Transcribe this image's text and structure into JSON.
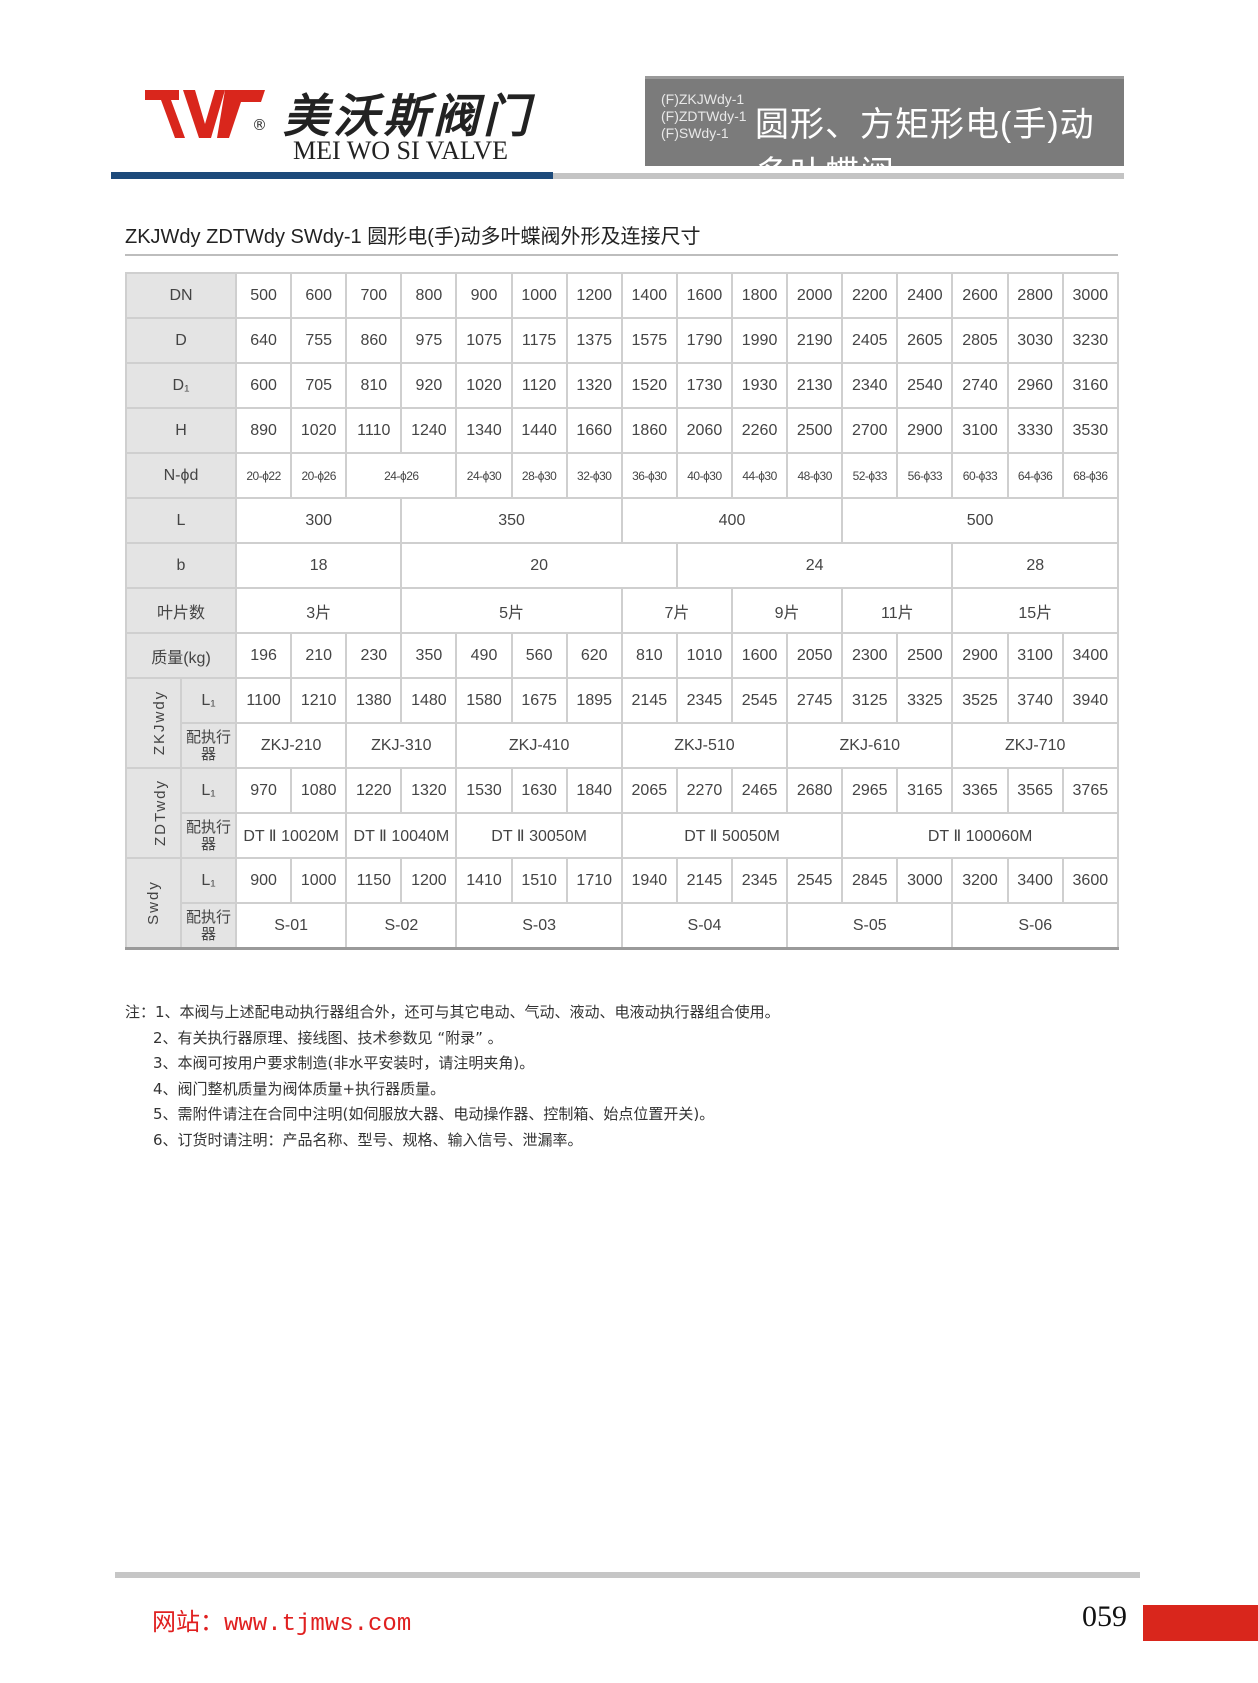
{
  "header": {
    "brand_cn": "美沃斯阀门",
    "brand_en": "MEI WO SI VALVE",
    "registered": "®",
    "logo_text": "TWF",
    "models": [
      "(F)ZKJWdy-1",
      "(F)ZDTWdy-1",
      "(F)SWdy-1"
    ],
    "title": "圆形、方矩形电(手)动多叶蝶阀"
  },
  "colors": {
    "brand_red": "#d9261c",
    "blue_bar": "#1d4a7a",
    "title_box": "#7b7b7b"
  },
  "section_title": "ZKJWdy ZDTWdy SWdy-1 圆形电(手)动多叶蝶阀外形及连接尺寸",
  "table": {
    "rows": [
      {
        "label": "DN",
        "cells": [
          [
            "500",
            1
          ],
          [
            "600",
            1
          ],
          [
            "700",
            1
          ],
          [
            "800",
            1
          ],
          [
            "900",
            1
          ],
          [
            "1000",
            1
          ],
          [
            "1200",
            1
          ],
          [
            "1400",
            1
          ],
          [
            "1600",
            1
          ],
          [
            "1800",
            1
          ],
          [
            "2000",
            1
          ],
          [
            "2200",
            1
          ],
          [
            "2400",
            1
          ],
          [
            "2600",
            1
          ],
          [
            "2800",
            1
          ],
          [
            "3000",
            1
          ]
        ]
      },
      {
        "label": "D",
        "cells": [
          [
            "640",
            1
          ],
          [
            "755",
            1
          ],
          [
            "860",
            1
          ],
          [
            "975",
            1
          ],
          [
            "1075",
            1
          ],
          [
            "1175",
            1
          ],
          [
            "1375",
            1
          ],
          [
            "1575",
            1
          ],
          [
            "1790",
            1
          ],
          [
            "1990",
            1
          ],
          [
            "2190",
            1
          ],
          [
            "2405",
            1
          ],
          [
            "2605",
            1
          ],
          [
            "2805",
            1
          ],
          [
            "3030",
            1
          ],
          [
            "3230",
            1
          ]
        ]
      },
      {
        "label": "D₁",
        "cells": [
          [
            "600",
            1
          ],
          [
            "705",
            1
          ],
          [
            "810",
            1
          ],
          [
            "920",
            1
          ],
          [
            "1020",
            1
          ],
          [
            "1120",
            1
          ],
          [
            "1320",
            1
          ],
          [
            "1520",
            1
          ],
          [
            "1730",
            1
          ],
          [
            "1930",
            1
          ],
          [
            "2130",
            1
          ],
          [
            "2340",
            1
          ],
          [
            "2540",
            1
          ],
          [
            "2740",
            1
          ],
          [
            "2960",
            1
          ],
          [
            "3160",
            1
          ]
        ]
      },
      {
        "label": "H",
        "cells": [
          [
            "890",
            1
          ],
          [
            "1020",
            1
          ],
          [
            "1110",
            1
          ],
          [
            "1240",
            1
          ],
          [
            "1340",
            1
          ],
          [
            "1440",
            1
          ],
          [
            "1660",
            1
          ],
          [
            "1860",
            1
          ],
          [
            "2060",
            1
          ],
          [
            "2260",
            1
          ],
          [
            "2500",
            1
          ],
          [
            "2700",
            1
          ],
          [
            "2900",
            1
          ],
          [
            "3100",
            1
          ],
          [
            "3330",
            1
          ],
          [
            "3530",
            1
          ]
        ]
      },
      {
        "label": "N-ϕd",
        "small": true,
        "cells": [
          [
            "20-ϕ22",
            1
          ],
          [
            "20-ϕ26",
            1
          ],
          [
            "24-ϕ26",
            2
          ],
          [
            "24-ϕ30",
            1
          ],
          [
            "28-ϕ30",
            1
          ],
          [
            "32-ϕ30",
            1
          ],
          [
            "36-ϕ30",
            1
          ],
          [
            "40-ϕ30",
            1
          ],
          [
            "44-ϕ30",
            1
          ],
          [
            "48-ϕ30",
            1
          ],
          [
            "52-ϕ33",
            1
          ],
          [
            "56-ϕ33",
            1
          ],
          [
            "60-ϕ33",
            1
          ],
          [
            "64-ϕ36",
            1
          ],
          [
            "68-ϕ36",
            1
          ]
        ]
      },
      {
        "label": "L",
        "cells": [
          [
            "300",
            3
          ],
          [
            "350",
            4
          ],
          [
            "400",
            4
          ],
          [
            "500",
            5
          ]
        ]
      },
      {
        "label": "b",
        "cells": [
          [
            "18",
            3
          ],
          [
            "20",
            5
          ],
          [
            "24",
            5
          ],
          [
            "28",
            3
          ]
        ]
      },
      {
        "label": "叶片数",
        "cells": [
          [
            "3片",
            3
          ],
          [
            "5片",
            4
          ],
          [
            "7片",
            2
          ],
          [
            "9片",
            2
          ],
          [
            "11片",
            2
          ],
          [
            "15片",
            3
          ]
        ]
      },
      {
        "label": "质量(kg)",
        "cells": [
          [
            "196",
            1
          ],
          [
            "210",
            1
          ],
          [
            "230",
            1
          ],
          [
            "350",
            1
          ],
          [
            "490",
            1
          ],
          [
            "560",
            1
          ],
          [
            "620",
            1
          ],
          [
            "810",
            1
          ],
          [
            "1010",
            1
          ],
          [
            "1600",
            1
          ],
          [
            "2050",
            1
          ],
          [
            "2300",
            1
          ],
          [
            "2500",
            1
          ],
          [
            "2900",
            1
          ],
          [
            "3100",
            1
          ],
          [
            "3400",
            1
          ]
        ]
      }
    ],
    "groups": [
      {
        "name": "ZKJwdy",
        "l1": {
          "label": "L₁",
          "cells": [
            [
              "1100",
              1
            ],
            [
              "1210",
              1
            ],
            [
              "1380",
              1
            ],
            [
              "1480",
              1
            ],
            [
              "1580",
              1
            ],
            [
              "1675",
              1
            ],
            [
              "1895",
              1
            ],
            [
              "2145",
              1
            ],
            [
              "2345",
              1
            ],
            [
              "2545",
              1
            ],
            [
              "2745",
              1
            ],
            [
              "3125",
              1
            ],
            [
              "3325",
              1
            ],
            [
              "3525",
              1
            ],
            [
              "3740",
              1
            ],
            [
              "3940",
              1
            ]
          ]
        },
        "actuator": {
          "label": "配执行器",
          "cells": [
            [
              "ZKJ-210",
              2
            ],
            [
              "ZKJ-310",
              2
            ],
            [
              "ZKJ-410",
              3
            ],
            [
              "ZKJ-510",
              3
            ],
            [
              "ZKJ-610",
              3
            ],
            [
              "ZKJ-710",
              3
            ]
          ]
        }
      },
      {
        "name": "ZDTwdy",
        "l1": {
          "label": "L₁",
          "cells": [
            [
              "970",
              1
            ],
            [
              "1080",
              1
            ],
            [
              "1220",
              1
            ],
            [
              "1320",
              1
            ],
            [
              "1530",
              1
            ],
            [
              "1630",
              1
            ],
            [
              "1840",
              1
            ],
            [
              "2065",
              1
            ],
            [
              "2270",
              1
            ],
            [
              "2465",
              1
            ],
            [
              "2680",
              1
            ],
            [
              "2965",
              1
            ],
            [
              "3165",
              1
            ],
            [
              "3365",
              1
            ],
            [
              "3565",
              1
            ],
            [
              "3765",
              1
            ]
          ]
        },
        "actuator": {
          "label": "配执行器",
          "cells": [
            [
              "DT Ⅱ 10020M",
              2
            ],
            [
              "DT Ⅱ 10040M",
              2
            ],
            [
              "DT Ⅱ 30050M",
              3
            ],
            [
              "DT Ⅱ 50050M",
              4
            ],
            [
              "DT Ⅱ 100060M",
              5
            ]
          ]
        }
      },
      {
        "name": "Swdy",
        "l1": {
          "label": "L₁",
          "cells": [
            [
              "900",
              1
            ],
            [
              "1000",
              1
            ],
            [
              "1150",
              1
            ],
            [
              "1200",
              1
            ],
            [
              "1410",
              1
            ],
            [
              "1510",
              1
            ],
            [
              "1710",
              1
            ],
            [
              "1940",
              1
            ],
            [
              "2145",
              1
            ],
            [
              "2345",
              1
            ],
            [
              "2545",
              1
            ],
            [
              "2845",
              1
            ],
            [
              "3000",
              1
            ],
            [
              "3200",
              1
            ],
            [
              "3400",
              1
            ],
            [
              "3600",
              1
            ]
          ]
        },
        "actuator": {
          "label": "配执行器",
          "cells": [
            [
              "S-01",
              2
            ],
            [
              "S-02",
              2
            ],
            [
              "S-03",
              3
            ],
            [
              "S-04",
              3
            ],
            [
              "S-05",
              3
            ],
            [
              "S-06",
              3
            ]
          ]
        }
      }
    ]
  },
  "notes": {
    "prefix": "注：",
    "items": [
      "1、本阀与上述配电动执行器组合外，还可与其它电动、气动、液动、电液动执行器组合使用。",
      "2、有关执行器原理、接线图、技术参数见 “附录” 。",
      "3、本阀可按用户要求制造(非水平安装时，请注明夹角)。",
      "4、阀门整机质量为阀体质量+执行器质量。",
      "5、需附件请注在合同中注明(如伺服放大器、电动操作器、控制箱、始点位置开关)。",
      "6、订货时请注明：产品名称、型号、规格、输入信号、泄漏率。"
    ]
  },
  "footer": {
    "website": "网站：www.tjmws.com",
    "page_number": "059"
  }
}
